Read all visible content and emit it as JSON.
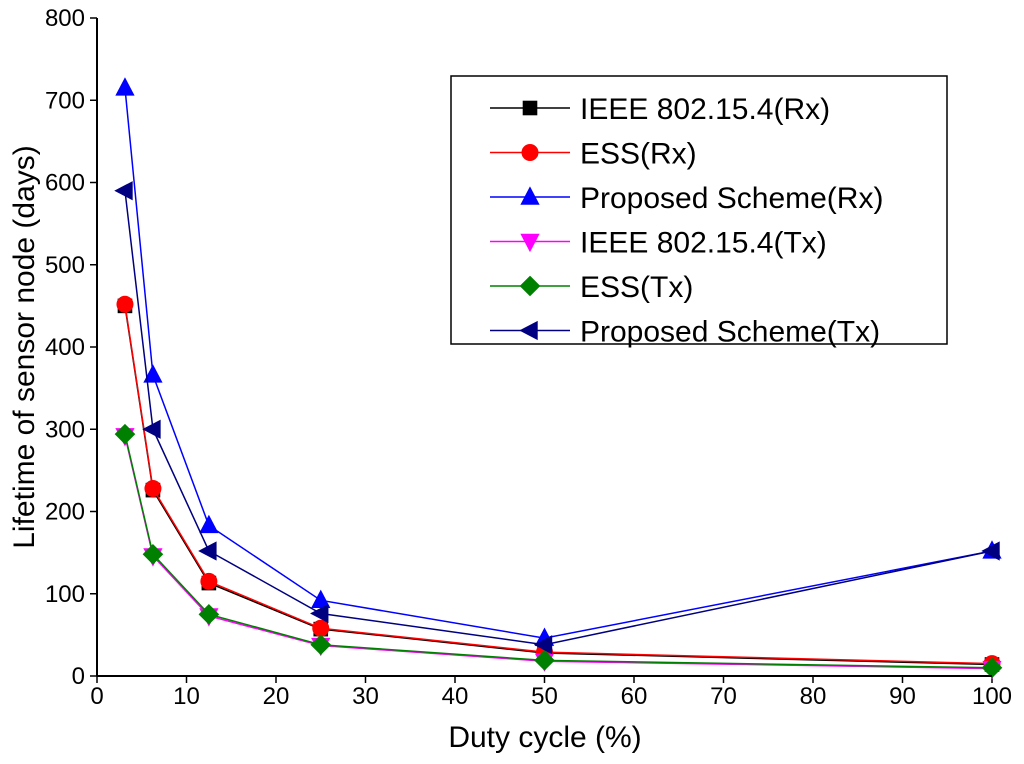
{
  "chart_data": {
    "type": "line",
    "title": "",
    "xlabel": "Duty cycle (%)",
    "ylabel": "Lifetime of sensor node (days)",
    "xlim": [
      0,
      100
    ],
    "ylim": [
      0,
      800
    ],
    "xticks": [
      0,
      10,
      20,
      30,
      40,
      50,
      60,
      70,
      80,
      90,
      100
    ],
    "yticks": [
      0,
      100,
      200,
      300,
      400,
      500,
      600,
      700,
      800
    ],
    "x": [
      3.125,
      6.25,
      12.5,
      25,
      50,
      100
    ],
    "legend_position": "top-right",
    "series": [
      {
        "name": "IEEE 802.15.4(Rx)",
        "color": "#000000",
        "marker": "square",
        "values": [
          450,
          226,
          113,
          57,
          28,
          14
        ]
      },
      {
        "name": "ESS(Rx)",
        "color": "#ff0000",
        "marker": "circle",
        "values": [
          452,
          228,
          115,
          58,
          29,
          15
        ]
      },
      {
        "name": "Proposed Scheme(Rx)",
        "color": "#0000ff",
        "marker": "triangle-up",
        "values": [
          715,
          366,
          183,
          92,
          46,
          152
        ]
      },
      {
        "name": "IEEE 802.15.4(Tx)",
        "color": "#ff00ff",
        "marker": "triangle-down",
        "values": [
          292,
          146,
          73,
          37,
          18,
          9
        ]
      },
      {
        "name": "ESS(Tx)",
        "color": "#008000",
        "marker": "diamond",
        "values": [
          294,
          148,
          75,
          38,
          19,
          10
        ]
      },
      {
        "name": "Proposed Scheme(Tx)",
        "color": "#000080",
        "marker": "triangle-left",
        "values": [
          590,
          300,
          152,
          76,
          38,
          152
        ]
      }
    ]
  }
}
